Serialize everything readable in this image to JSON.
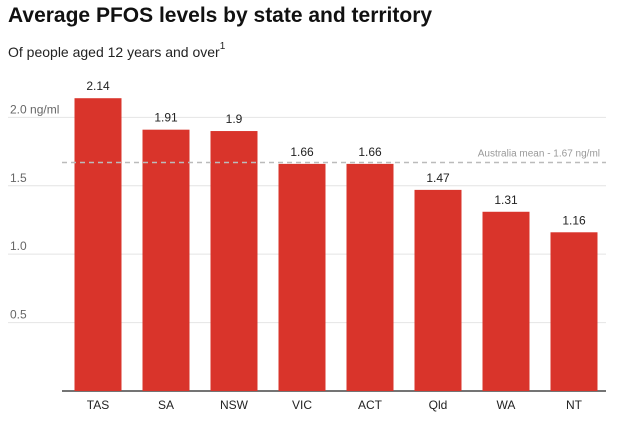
{
  "header": {
    "title": "Average PFOS levels by state and territory",
    "subtitle": "Of people aged 12 years and over",
    "subtitle_footnote": "1"
  },
  "colors": {
    "bar": "#d9342b",
    "grid": "#e4e4e4",
    "axis": "#222222",
    "reference": "#bbbbbb"
  },
  "chart_data": {
    "type": "bar",
    "title": "Average PFOS levels by state and territory",
    "subtitle": "Of people aged 12 years and over",
    "xlabel": "",
    "ylabel": "",
    "categories": [
      "TAS",
      "SA",
      "NSW",
      "VIC",
      "ACT",
      "Qld",
      "WA",
      "NT"
    ],
    "values": [
      2.14,
      1.91,
      1.9,
      1.66,
      1.66,
      1.47,
      1.31,
      1.16
    ],
    "value_labels": [
      "2.14",
      "1.91",
      "1.9",
      "1.66",
      "1.66",
      "1.47",
      "1.31",
      "1.16"
    ],
    "ylim": [
      0,
      2.2
    ],
    "yticks": [
      0.5,
      1.0,
      1.5,
      2.0
    ],
    "ytick_labels": [
      "0.5",
      "1.0",
      "1.5",
      "2.0 ng/ml"
    ],
    "grid": true,
    "reference_line": {
      "value": 1.67,
      "label": "Australia mean - 1.67 ng/ml"
    }
  }
}
